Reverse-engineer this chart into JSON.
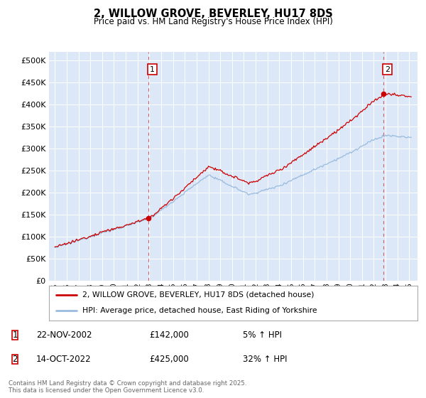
{
  "title": "2, WILLOW GROVE, BEVERLEY, HU17 8DS",
  "subtitle": "Price paid vs. HM Land Registry's House Price Index (HPI)",
  "property_label": "2, WILLOW GROVE, BEVERLEY, HU17 8DS (detached house)",
  "hpi_label": "HPI: Average price, detached house, East Riding of Yorkshire",
  "footnote": "Contains HM Land Registry data © Crown copyright and database right 2025.\nThis data is licensed under the Open Government Licence v3.0.",
  "sale1_date": "22-NOV-2002",
  "sale1_price": "£142,000",
  "sale1_hpi": "5% ↑ HPI",
  "sale2_date": "14-OCT-2022",
  "sale2_price": "£425,000",
  "sale2_hpi": "32% ↑ HPI",
  "ylim": [
    0,
    520000
  ],
  "yticks": [
    0,
    50000,
    100000,
    150000,
    200000,
    250000,
    300000,
    350000,
    400000,
    450000,
    500000
  ],
  "plot_bg": "#dce8f8",
  "line_color_property": "#cc0000",
  "line_color_hpi": "#99bbdd",
  "vline_color": "#cc0000",
  "marker_color": "#cc0000",
  "sale1_x": 2002.9,
  "sale2_x": 2022.79
}
